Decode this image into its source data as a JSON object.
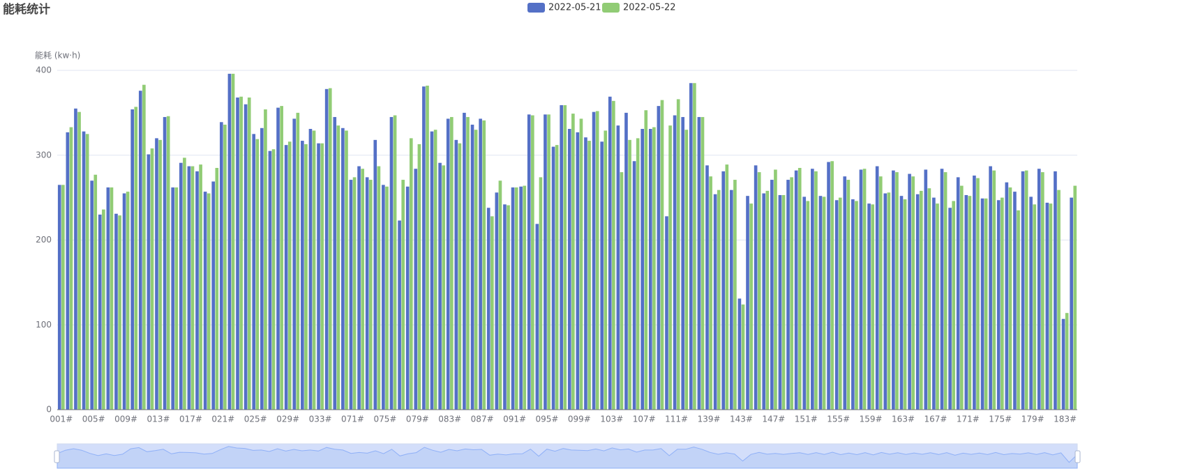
{
  "chart_data": {
    "type": "bar",
    "title": "能耗统计",
    "y_axis_label": "能耗 (kw·h)",
    "categories": [
      "001#",
      null,
      null,
      null,
      "005#",
      null,
      null,
      null,
      "009#",
      null,
      null,
      null,
      "013#",
      null,
      null,
      null,
      "017#",
      null,
      null,
      null,
      "021#",
      null,
      null,
      null,
      "025#",
      null,
      null,
      null,
      "029#",
      null,
      null,
      null,
      "033#",
      null,
      null,
      null,
      "071#",
      null,
      null,
      null,
      "075#",
      null,
      null,
      null,
      "079#",
      null,
      null,
      null,
      "083#",
      null,
      null,
      null,
      "087#",
      null,
      null,
      null,
      "091#",
      null,
      null,
      null,
      "095#",
      null,
      null,
      null,
      "099#",
      null,
      null,
      null,
      "103#",
      null,
      null,
      null,
      "107#",
      null,
      null,
      null,
      "111#",
      null,
      null,
      null,
      "139#",
      null,
      null,
      null,
      "143#",
      null,
      null,
      null,
      "147#",
      null,
      null,
      null,
      "151#",
      null,
      null,
      null,
      "155#",
      null,
      null,
      null,
      "159#",
      null,
      null,
      null,
      "163#",
      null,
      null,
      null,
      "167#",
      null,
      null,
      null,
      "171#",
      null,
      null,
      null,
      "175#",
      null,
      null,
      null,
      "179#",
      null,
      null,
      null,
      "183#",
      null
    ],
    "series": [
      {
        "name": "2022-05-21",
        "color": "#5470c6",
        "values": [
          265,
          327,
          355,
          328,
          270,
          230,
          262,
          231,
          255,
          354,
          376,
          301,
          320,
          345,
          262,
          291,
          287,
          281,
          257,
          269,
          339,
          396,
          368,
          360,
          325,
          332,
          305,
          356,
          312,
          343,
          317,
          331,
          314,
          378,
          345,
          332,
          271,
          287,
          274,
          318,
          265,
          345,
          223,
          263,
          284,
          381,
          328,
          291,
          343,
          318,
          350,
          336,
          343,
          238,
          256,
          242,
          262,
          263,
          348,
          219,
          348,
          310,
          359,
          331,
          327,
          321,
          351,
          316,
          369,
          335,
          350,
          293,
          331,
          331,
          358,
          228,
          347,
          345,
          385,
          345,
          288,
          254,
          281,
          259,
          131,
          252,
          288,
          255,
          271,
          253,
          271,
          282,
          251,
          284,
          252,
          292,
          247,
          275,
          248,
          283,
          243,
          287,
          255,
          282,
          252,
          278,
          254,
          283,
          250,
          284,
          238,
          274,
          253,
          276,
          249,
          287,
          247,
          268,
          257,
          281,
          251,
          284,
          244,
          281,
          107,
          250
        ]
      },
      {
        "name": "2022-05-22",
        "color": "#91cc75",
        "values": [
          265,
          333,
          351,
          325,
          277,
          236,
          262,
          229,
          257,
          357,
          383,
          308,
          318,
          346,
          262,
          297,
          287,
          289,
          255,
          285,
          336,
          396,
          369,
          368,
          319,
          354,
          307,
          358,
          316,
          350,
          313,
          329,
          314,
          379,
          335,
          329,
          274,
          284,
          271,
          287,
          263,
          347,
          271,
          320,
          313,
          382,
          330,
          288,
          345,
          314,
          345,
          330,
          341,
          228,
          270,
          241,
          262,
          264,
          347,
          274,
          348,
          312,
          359,
          349,
          343,
          317,
          352,
          329,
          364,
          280,
          318,
          320,
          353,
          333,
          365,
          335,
          366,
          330,
          385,
          345,
          275,
          259,
          289,
          271,
          124,
          243,
          280,
          258,
          283,
          253,
          274,
          285,
          246,
          281,
          251,
          293,
          250,
          271,
          246,
          284,
          242,
          275,
          256,
          280,
          248,
          275,
          258,
          261,
          243,
          280,
          246,
          264,
          252,
          273,
          249,
          282,
          250,
          262,
          235,
          282,
          242,
          280,
          243,
          259,
          114,
          264
        ]
      }
    ],
    "ylim": [
      0,
      400
    ],
    "yticks": [
      0,
      100,
      200,
      300,
      400
    ],
    "grid": true,
    "legend": "top"
  }
}
